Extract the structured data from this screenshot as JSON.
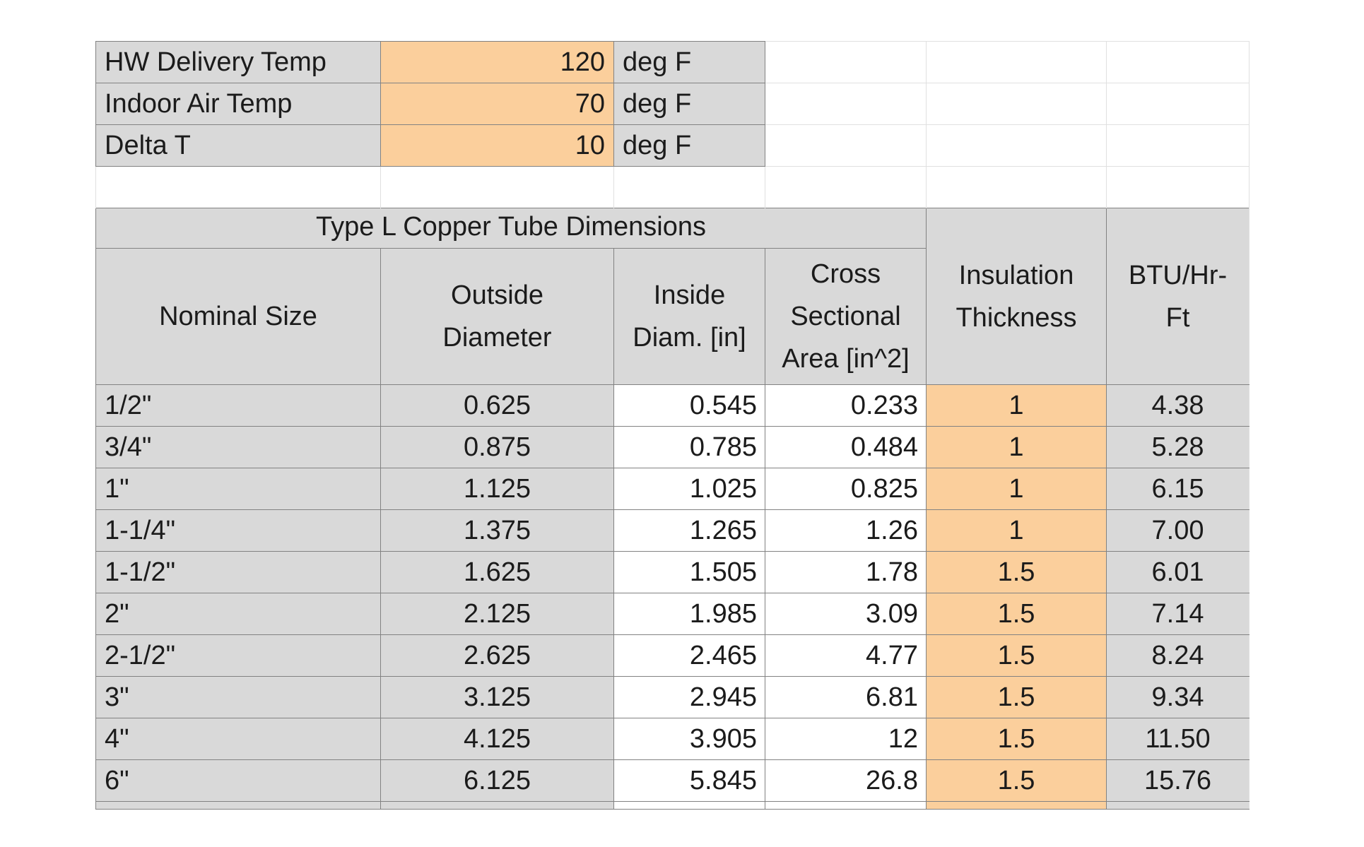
{
  "sheet": {
    "inputs": [
      {
        "label": "HW Delivery Temp",
        "value": "120",
        "unit": "deg F"
      },
      {
        "label": "Indoor Air Temp",
        "value": "70",
        "unit": "deg F"
      },
      {
        "label": "Delta T",
        "value": "10",
        "unit": "deg F"
      }
    ],
    "table": {
      "title": "Type L Copper Tube Dimensions",
      "columns": [
        "Nominal Size",
        "Outside Diameter",
        "Inside Diam. [in]",
        "Cross Sectional Area [in^2]",
        "Insulation Thickness",
        "BTU/Hr-Ft"
      ],
      "rows": [
        {
          "nominal_size": "1/2\"",
          "outside_diameter": "0.625",
          "inside_diameter": "0.545",
          "cross_sectional_area": "0.233",
          "insulation_thickness": "1",
          "btu_per_hr_ft": "4.38"
        },
        {
          "nominal_size": "3/4\"",
          "outside_diameter": "0.875",
          "inside_diameter": "0.785",
          "cross_sectional_area": "0.484",
          "insulation_thickness": "1",
          "btu_per_hr_ft": "5.28"
        },
        {
          "nominal_size": "1\"",
          "outside_diameter": "1.125",
          "inside_diameter": "1.025",
          "cross_sectional_area": "0.825",
          "insulation_thickness": "1",
          "btu_per_hr_ft": "6.15"
        },
        {
          "nominal_size": "1-1/4\"",
          "outside_diameter": "1.375",
          "inside_diameter": "1.265",
          "cross_sectional_area": "1.26",
          "insulation_thickness": "1",
          "btu_per_hr_ft": "7.00"
        },
        {
          "nominal_size": "1-1/2\"",
          "outside_diameter": "1.625",
          "inside_diameter": "1.505",
          "cross_sectional_area": "1.78",
          "insulation_thickness": "1.5",
          "btu_per_hr_ft": "6.01"
        },
        {
          "nominal_size": "2\"",
          "outside_diameter": "2.125",
          "inside_diameter": "1.985",
          "cross_sectional_area": "3.09",
          "insulation_thickness": "1.5",
          "btu_per_hr_ft": "7.14"
        },
        {
          "nominal_size": "2-1/2\"",
          "outside_diameter": "2.625",
          "inside_diameter": "2.465",
          "cross_sectional_area": "4.77",
          "insulation_thickness": "1.5",
          "btu_per_hr_ft": "8.24"
        },
        {
          "nominal_size": "3\"",
          "outside_diameter": "3.125",
          "inside_diameter": "2.945",
          "cross_sectional_area": "6.81",
          "insulation_thickness": "1.5",
          "btu_per_hr_ft": "9.34"
        },
        {
          "nominal_size": "4\"",
          "outside_diameter": "4.125",
          "inside_diameter": "3.905",
          "cross_sectional_area": "12",
          "insulation_thickness": "1.5",
          "btu_per_hr_ft": "11.50"
        },
        {
          "nominal_size": "6\"",
          "outside_diameter": "6.125",
          "inside_diameter": "5.845",
          "cross_sectional_area": "26.8",
          "insulation_thickness": "1.5",
          "btu_per_hr_ft": "15.76"
        }
      ]
    }
  },
  "colors": {
    "highlight_orange": "#fbcf9c",
    "cell_gray": "#d9d9d9",
    "border_dark": "#828282",
    "grid_light": "#e0e0e0",
    "text": "#1b1b1b"
  }
}
